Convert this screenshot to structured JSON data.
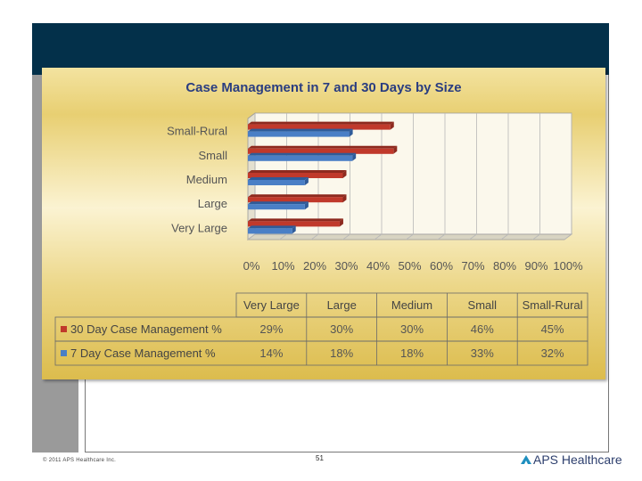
{
  "slide": {
    "copyright": "© 2011 APS Healthcare Inc.",
    "page_number": "51",
    "logo_text": "APS Healthcare"
  },
  "chart_data": {
    "type": "bar",
    "orientation": "horizontal",
    "title": "Case Management in 7 and 30 Days by Size",
    "categories": [
      "Very Large",
      "Large",
      "Medium",
      "Small",
      "Small-Rural"
    ],
    "series": [
      {
        "name": "30 Day Case Management %",
        "values": [
          29,
          30,
          30,
          46,
          45
        ],
        "labels": [
          "29%",
          "30%",
          "30%",
          "46%",
          "45%"
        ],
        "color": "#c0392b"
      },
      {
        "name": "7 Day Case Management %",
        "values": [
          14,
          18,
          18,
          33,
          32
        ],
        "labels": [
          "14%",
          "18%",
          "18%",
          "33%",
          "32%"
        ],
        "color": "#4a7fc6"
      }
    ],
    "xticks": [
      "0%",
      "10%",
      "20%",
      "30%",
      "40%",
      "50%",
      "60%",
      "70%",
      "80%",
      "90%",
      "100%"
    ],
    "xlim": [
      0,
      100
    ],
    "grid": true,
    "legend": "data-table"
  }
}
